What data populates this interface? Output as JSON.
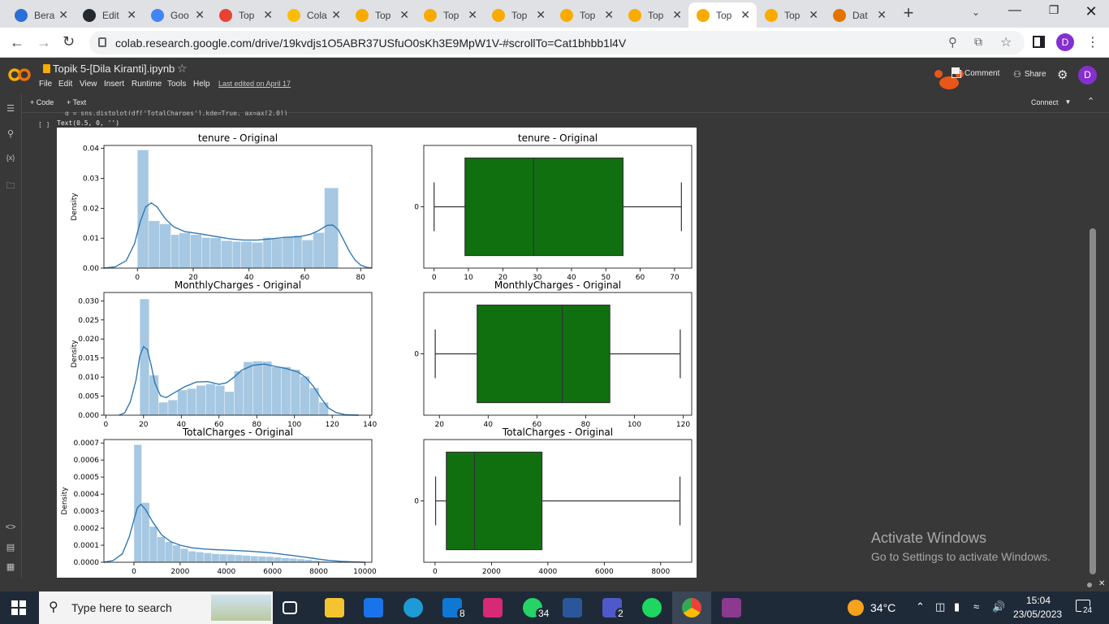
{
  "browser": {
    "tabs": [
      {
        "label": "Bera",
        "color": "#2b6fd6"
      },
      {
        "label": "Edit",
        "color": "#24292f"
      },
      {
        "label": "Goo",
        "color": "#4285f4"
      },
      {
        "label": "Top",
        "color": "#e94235"
      },
      {
        "label": "Cola",
        "color": "#fbbc04"
      },
      {
        "label": "Top",
        "color": "#f9ab00"
      },
      {
        "label": "Top",
        "color": "#f9ab00"
      },
      {
        "label": "Top",
        "color": "#f9ab00"
      },
      {
        "label": "Top",
        "color": "#f9ab00"
      },
      {
        "label": "Top",
        "color": "#f9ab00"
      },
      {
        "label": "Top",
        "color": "#f9ab00"
      },
      {
        "label": "Top",
        "color": "#f9ab00"
      },
      {
        "label": "Dat",
        "color": "#e37400"
      }
    ],
    "active_tab_index": 10,
    "url": "colab.research.google.com/drive/19kvdjs1O5ABR37USfuO0sKh3E9MpW1V-#scrollTo=Cat1bhbb1l4V",
    "profile_initial": "D"
  },
  "colab": {
    "title": "Topik 5-[Dila Kiranti].ipynb",
    "menus": [
      "File",
      "Edit",
      "View",
      "Insert",
      "Runtime",
      "Tools",
      "Help"
    ],
    "last_edited": "Last edited on April 17",
    "comment_label": "Comment",
    "share_label": "Share",
    "avatar_initial": "D",
    "add_code": "+ Code",
    "add_text": "+ Text",
    "connect_label": "Connect",
    "code_fragment": "g = sns.distplot(df['TotalCharges'],kde=True, ax=ax[2,0])",
    "cell_bracket": "[ ]",
    "cell_output": "Text(0.5, 0, '')"
  },
  "chart_data": [
    {
      "type": "bar",
      "title": "tenure - Original",
      "ylabel": "Density",
      "xlim": [
        -12,
        84
      ],
      "ylim": [
        0,
        0.041
      ],
      "xticks": [
        "0",
        "20",
        "40",
        "60",
        "80"
      ],
      "xtick_values": [
        0,
        20,
        40,
        60,
        80
      ],
      "yticks": [
        "0.00",
        "0.01",
        "0.02",
        "0.03",
        "0.04"
      ],
      "ytick_values": [
        0,
        0.01,
        0.02,
        0.03,
        0.04
      ],
      "bins": [
        [
          0,
          4,
          0.0395
        ],
        [
          4,
          8,
          0.0158
        ],
        [
          8,
          12,
          0.0148
        ],
        [
          12,
          15,
          0.0112
        ],
        [
          15,
          19,
          0.0118
        ],
        [
          19,
          23,
          0.0112
        ],
        [
          23,
          26,
          0.0102
        ],
        [
          26,
          30,
          0.0101
        ],
        [
          30,
          34,
          0.0092
        ],
        [
          34,
          37,
          0.0089
        ],
        [
          37,
          41,
          0.0089
        ],
        [
          41,
          45,
          0.0086
        ],
        [
          45,
          48,
          0.0102
        ],
        [
          48,
          52,
          0.0098
        ],
        [
          52,
          56,
          0.0104
        ],
        [
          56,
          59,
          0.0109
        ],
        [
          59,
          63,
          0.0094
        ],
        [
          63,
          67,
          0.0119
        ],
        [
          67,
          72,
          0.0268
        ]
      ],
      "kde": [
        [
          -12,
          0
        ],
        [
          -8,
          0.0004
        ],
        [
          -4,
          0.0025
        ],
        [
          -1,
          0.0082
        ],
        [
          1,
          0.0155
        ],
        [
          3,
          0.0205
        ],
        [
          5,
          0.0218
        ],
        [
          7,
          0.0205
        ],
        [
          10,
          0.0165
        ],
        [
          13,
          0.0138
        ],
        [
          17,
          0.0122
        ],
        [
          22,
          0.0115
        ],
        [
          28,
          0.0106
        ],
        [
          33,
          0.0098
        ],
        [
          38,
          0.0094
        ],
        [
          43,
          0.0094
        ],
        [
          48,
          0.0098
        ],
        [
          53,
          0.0103
        ],
        [
          58,
          0.0105
        ],
        [
          62,
          0.0113
        ],
        [
          65,
          0.0126
        ],
        [
          68,
          0.0143
        ],
        [
          70,
          0.0144
        ],
        [
          72,
          0.0128
        ],
        [
          74,
          0.0092
        ],
        [
          76,
          0.0055
        ],
        [
          78,
          0.0027
        ],
        [
          80,
          0.001
        ],
        [
          82,
          0.0003
        ],
        [
          84,
          0
        ]
      ],
      "bar_color": "#a6c8e2",
      "line_color": "#2f78b4"
    },
    {
      "type": "box",
      "title": "tenure - Original",
      "xlim": [
        -3,
        75
      ],
      "xticks": [
        "0",
        "10",
        "20",
        "30",
        "40",
        "50",
        "60",
        "70"
      ],
      "xtick_values": [
        0,
        10,
        20,
        30,
        40,
        50,
        60,
        70
      ],
      "ytick": "0",
      "whisker_low": 0,
      "q1": 9,
      "median": 29,
      "q3": 55,
      "whisker_high": 72,
      "box_color": "#107010"
    },
    {
      "type": "bar",
      "title": "MonthlyCharges - Original",
      "ylabel": "Density",
      "xlim": [
        -1,
        141
      ],
      "ylim": [
        0,
        0.0322
      ],
      "xticks": [
        "0",
        "20",
        "40",
        "60",
        "80",
        "100",
        "120",
        "140"
      ],
      "xtick_values": [
        0,
        20,
        40,
        60,
        80,
        100,
        120,
        140
      ],
      "yticks": [
        "0.000",
        "0.005",
        "0.010",
        "0.015",
        "0.020",
        "0.025",
        "0.030"
      ],
      "ytick_values": [
        0,
        0.005,
        0.01,
        0.015,
        0.02,
        0.025,
        0.03
      ],
      "bins": [
        [
          18,
          23,
          0.0305
        ],
        [
          23,
          28,
          0.0105
        ],
        [
          28,
          33,
          0.0034
        ],
        [
          33,
          38,
          0.004
        ],
        [
          38,
          43,
          0.0066
        ],
        [
          43,
          48,
          0.007
        ],
        [
          48,
          53,
          0.0078
        ],
        [
          53,
          58,
          0.0082
        ],
        [
          58,
          63,
          0.0078
        ],
        [
          63,
          68,
          0.0062
        ],
        [
          68,
          73,
          0.0116
        ],
        [
          73,
          78,
          0.014
        ],
        [
          78,
          83,
          0.0142
        ],
        [
          83,
          88,
          0.0141
        ],
        [
          88,
          93,
          0.0127
        ],
        [
          93,
          98,
          0.0127
        ],
        [
          98,
          103,
          0.012
        ],
        [
          103,
          108,
          0.0102
        ],
        [
          108,
          113,
          0.0072
        ],
        [
          113,
          118,
          0.0034
        ]
      ],
      "kde": [
        [
          7,
          0
        ],
        [
          10,
          0.0006
        ],
        [
          13,
          0.0035
        ],
        [
          16,
          0.0092
        ],
        [
          18,
          0.0155
        ],
        [
          20,
          0.018
        ],
        [
          22,
          0.0172
        ],
        [
          24,
          0.0132
        ],
        [
          26,
          0.0085
        ],
        [
          29,
          0.0051
        ],
        [
          32,
          0.0046
        ],
        [
          36,
          0.0058
        ],
        [
          42,
          0.0075
        ],
        [
          48,
          0.0087
        ],
        [
          54,
          0.0088
        ],
        [
          60,
          0.0081
        ],
        [
          64,
          0.0085
        ],
        [
          68,
          0.01
        ],
        [
          72,
          0.0118
        ],
        [
          78,
          0.0131
        ],
        [
          84,
          0.0134
        ],
        [
          90,
          0.0128
        ],
        [
          96,
          0.0122
        ],
        [
          102,
          0.0113
        ],
        [
          106,
          0.0099
        ],
        [
          110,
          0.0076
        ],
        [
          114,
          0.0045
        ],
        [
          118,
          0.0019
        ],
        [
          122,
          0.0007
        ],
        [
          127,
          0.0001
        ],
        [
          134,
          0
        ]
      ],
      "bar_color": "#a6c8e2",
      "line_color": "#2f78b4"
    },
    {
      "type": "box",
      "title": "MonthlyCharges - Original",
      "xlim": [
        13.6,
        123.5
      ],
      "xticks": [
        "20",
        "40",
        "60",
        "80",
        "100",
        "120"
      ],
      "xtick_values": [
        20,
        40,
        60,
        80,
        100,
        120
      ],
      "ytick": "0",
      "whisker_low": 18.3,
      "q1": 35.5,
      "median": 70.4,
      "q3": 89.9,
      "whisker_high": 118.8,
      "box_color": "#107010"
    },
    {
      "type": "bar",
      "title": "TotalCharges - Original",
      "ylabel": "Density",
      "xlim": [
        -1300,
        10300
      ],
      "ylim": [
        0,
        0.00072
      ],
      "xticks": [
        "0",
        "2000",
        "4000",
        "6000",
        "8000",
        "10000"
      ],
      "xtick_values": [
        0,
        2000,
        4000,
        6000,
        8000,
        10000
      ],
      "yticks": [
        "0.0000",
        "0.0001",
        "0.0002",
        "0.0003",
        "0.0004",
        "0.0005",
        "0.0006",
        "0.0007"
      ],
      "ytick_values": [
        0,
        0.0001,
        0.0002,
        0.0003,
        0.0004,
        0.0005,
        0.0006,
        0.0007
      ],
      "bins": [
        [
          0,
          336,
          0.00069
        ],
        [
          336,
          672,
          0.00035
        ],
        [
          672,
          1008,
          0.00021
        ],
        [
          1008,
          1344,
          0.00015
        ],
        [
          1344,
          1680,
          0.00012
        ],
        [
          1680,
          2016,
          0.0001
        ],
        [
          2016,
          2352,
          8e-05
        ],
        [
          2352,
          2688,
          6.5e-05
        ],
        [
          2688,
          3024,
          6e-05
        ],
        [
          3024,
          3360,
          5.5e-05
        ],
        [
          3360,
          3696,
          5e-05
        ],
        [
          3696,
          4032,
          4.8e-05
        ],
        [
          4032,
          4368,
          4.6e-05
        ],
        [
          4368,
          4704,
          4.3e-05
        ],
        [
          4704,
          5040,
          4e-05
        ],
        [
          5040,
          5376,
          3.7e-05
        ],
        [
          5376,
          5712,
          3.5e-05
        ],
        [
          5712,
          6048,
          3.3e-05
        ],
        [
          6048,
          6384,
          3e-05
        ],
        [
          6384,
          6720,
          2.6e-05
        ],
        [
          6720,
          7056,
          2.3e-05
        ],
        [
          7056,
          7392,
          1.9e-05
        ],
        [
          7392,
          7728,
          1.5e-05
        ],
        [
          7728,
          8064,
          1.1e-05
        ],
        [
          8064,
          8400,
          7e-06
        ],
        [
          8400,
          8736,
          4e-06
        ]
      ],
      "kde": [
        [
          -1300,
          0
        ],
        [
          -900,
          1e-05
        ],
        [
          -500,
          5e-05
        ],
        [
          -200,
          0.00015
        ],
        [
          0,
          0.00025
        ],
        [
          150,
          0.00032
        ],
        [
          300,
          0.00034
        ],
        [
          500,
          0.00031
        ],
        [
          800,
          0.00024
        ],
        [
          1200,
          0.00016
        ],
        [
          1600,
          0.00012
        ],
        [
          2000,
          0.0001
        ],
        [
          2500,
          8.5e-05
        ],
        [
          3000,
          7.8e-05
        ],
        [
          3500,
          7.4e-05
        ],
        [
          4000,
          7.1e-05
        ],
        [
          4500,
          6.8e-05
        ],
        [
          5000,
          6.5e-05
        ],
        [
          5500,
          6e-05
        ],
        [
          6000,
          5.4e-05
        ],
        [
          6500,
          4.6e-05
        ],
        [
          7000,
          3.7e-05
        ],
        [
          7500,
          2.8e-05
        ],
        [
          8000,
          1.8e-05
        ],
        [
          8500,
          1e-05
        ],
        [
          9000,
          5e-06
        ],
        [
          9500,
          2e-06
        ],
        [
          10000,
          0
        ]
      ],
      "bar_color": "#a6c8e2",
      "line_color": "#2f78b4"
    },
    {
      "type": "box",
      "title": "TotalCharges - Original",
      "xlim": [
        -400,
        9100
      ],
      "xticks": [
        "0",
        "2000",
        "4000",
        "6000",
        "8000"
      ],
      "xtick_values": [
        0,
        2000,
        4000,
        6000,
        8000
      ],
      "ytick": "0",
      "whisker_low": 19,
      "q1": 400,
      "median": 1400,
      "q3": 3790,
      "whisker_high": 8684,
      "box_color": "#107010"
    }
  ],
  "windows": {
    "activate_title": "Activate Windows",
    "activate_sub": "Go to Settings to activate Windows.",
    "search_placeholder": "Type here to search",
    "weather": "34°C",
    "time": "15:04",
    "date": "23/05/2023",
    "notif_count": "24",
    "mail_badge": "8",
    "whatsapp_badge": "34",
    "teams_badge": "2"
  }
}
